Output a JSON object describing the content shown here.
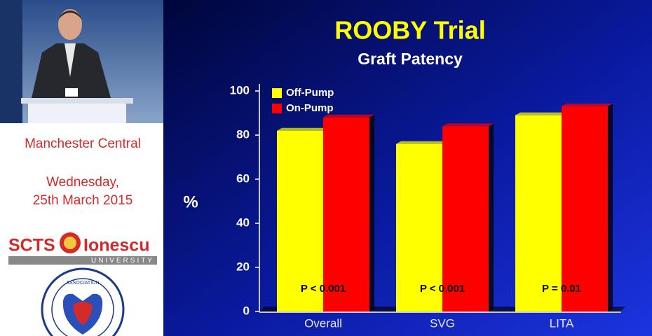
{
  "sidebar": {
    "venue": "Manchester Central",
    "date_line1": "Wednesday,",
    "date_line2": "25th March 2015",
    "logo_left": "SCTS",
    "logo_right": "Ionescu",
    "logo_sub": "UNIVERSITY",
    "badge": "ASSOCIATION"
  },
  "chart_data": {
    "type": "bar",
    "title": "ROOBY Trial",
    "subtitle": "Graft Patency",
    "y_label": "%",
    "categories": [
      "Overall",
      "SVG",
      "LITA"
    ],
    "series": [
      {
        "name": "Off-Pump",
        "color": "#ffff00",
        "values": [
          82,
          76,
          89
        ]
      },
      {
        "name": "On-Pump",
        "color": "#ff0000",
        "values": [
          88,
          84,
          93
        ]
      }
    ],
    "annotations": [
      "P < 0.001",
      "P < 0.001",
      "P = 0.01"
    ],
    "ylim": [
      0,
      100
    ],
    "yticks": [
      0,
      20,
      40,
      60,
      80,
      100
    ],
    "grid": false,
    "legend": "upper left"
  }
}
